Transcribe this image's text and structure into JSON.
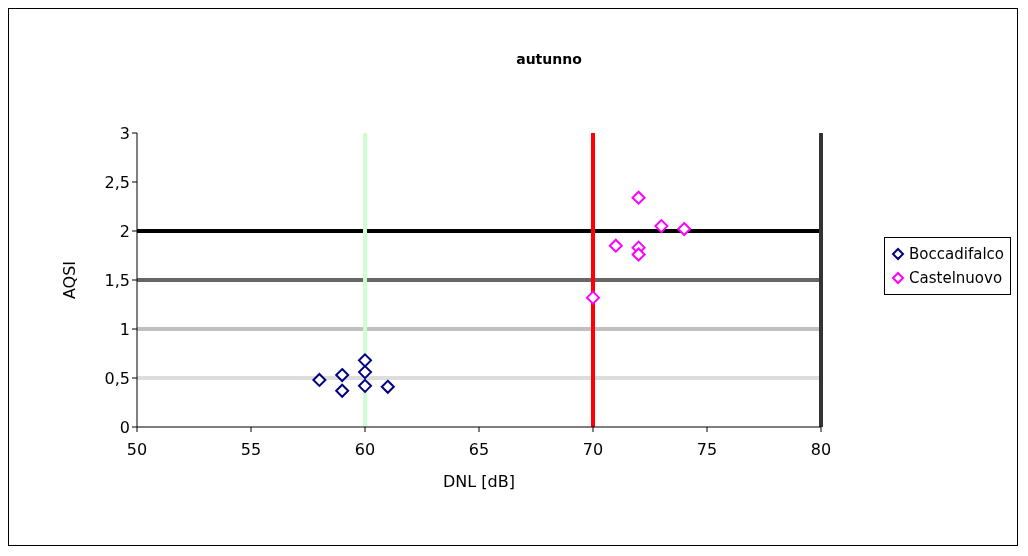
{
  "chart_data": {
    "type": "scatter",
    "title": "autunno",
    "xlabel": "DNL [dB]",
    "ylabel": "AQSI",
    "xlim": [
      50,
      80
    ],
    "xticks": [
      50,
      55,
      60,
      65,
      70,
      75,
      80
    ],
    "ylim": [
      0,
      3
    ],
    "yticks": [
      0,
      {
        "value": 0.5,
        "label": "0,5"
      },
      1,
      {
        "value": 1.5,
        "label": "1,5"
      },
      2,
      {
        "value": 2.5,
        "label": "2,5"
      },
      3
    ],
    "series": [
      {
        "name": "Boccadifalco",
        "color": "#000080",
        "x": [
          58,
          59,
          59,
          60,
          60,
          60,
          61
        ],
        "values": [
          0.48,
          0.53,
          0.37,
          0.68,
          0.56,
          0.42,
          0.41
        ]
      },
      {
        "name": "Castelnuovo",
        "color": "#ff00ff",
        "x": [
          70,
          71,
          72,
          72,
          72,
          73,
          74
        ],
        "values": [
          1.32,
          1.85,
          2.34,
          1.83,
          1.76,
          2.05,
          2.02
        ]
      }
    ],
    "ref_lines": [
      {
        "axis": "y",
        "value": 2,
        "color": "#000000"
      },
      {
        "axis": "y",
        "value": 1.5,
        "color": "#666666"
      },
      {
        "axis": "y",
        "value": 1,
        "color": "#c0c0c0"
      },
      {
        "axis": "y",
        "value": 0.5,
        "color": "#dddddd"
      },
      {
        "axis": "x",
        "value": 60,
        "color": "#ccffcc"
      },
      {
        "axis": "x",
        "value": 70,
        "color": "#ff0000"
      },
      {
        "axis": "x",
        "value": 80,
        "color": "#333333"
      }
    ],
    "marker": "diamond",
    "legend": "right"
  }
}
